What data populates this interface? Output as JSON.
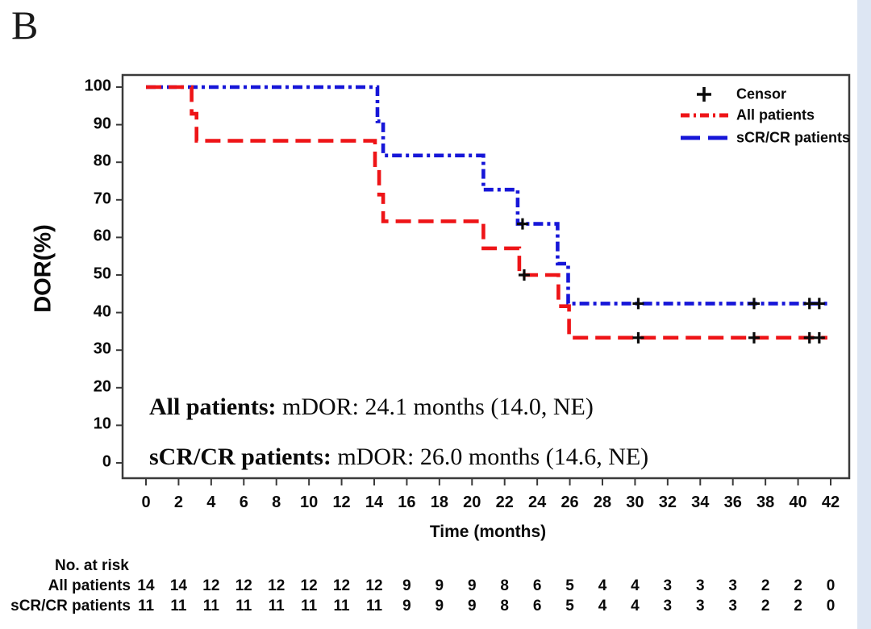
{
  "panel_label": "B",
  "colors": {
    "red_series": "#ee1417",
    "blue_series": "#1616d8",
    "frame": "#3a3a3a",
    "censor": "#0a0a0a",
    "right_strip": "#dde6f3"
  },
  "legend": {
    "censor_symbol": "+",
    "censor_label": "Censor",
    "series1_label": "All patients",
    "series2_label": "sCR/CR patients"
  },
  "annotations": [
    {
      "label": "All patients:",
      "text": " mDOR: 24.1 months (14.0, NE)"
    },
    {
      "label": "sCR/CR patients:",
      "text": " mDOR: 26.0 months (14.6, NE)"
    }
  ],
  "risk_table": {
    "title": "No. at risk",
    "rows": [
      {
        "label": "All patients",
        "values": [
          14,
          14,
          12,
          12,
          12,
          12,
          12,
          12,
          9,
          9,
          9,
          8,
          6,
          5,
          4,
          4,
          3,
          3,
          3,
          2,
          2,
          0
        ]
      },
      {
        "label": "sCR/CR patients",
        "values": [
          11,
          11,
          11,
          11,
          11,
          11,
          11,
          11,
          9,
          9,
          9,
          8,
          6,
          5,
          4,
          4,
          3,
          3,
          3,
          2,
          2,
          0
        ]
      }
    ]
  },
  "chart_data": {
    "type": "line",
    "subtype": "kaplan-meier-step",
    "title": "",
    "xlabel": "Time (months)",
    "ylabel": "DOR(%)",
    "xlim": [
      0,
      42
    ],
    "ylim": [
      0,
      100
    ],
    "grid": false,
    "legend_position": "top-right-inside",
    "x_ticks": [
      0,
      2,
      4,
      6,
      8,
      10,
      12,
      14,
      16,
      18,
      20,
      22,
      24,
      26,
      28,
      30,
      32,
      34,
      36,
      38,
      40,
      42
    ],
    "y_ticks": [
      0,
      10,
      20,
      30,
      40,
      50,
      60,
      70,
      80,
      90,
      100
    ],
    "series": [
      {
        "name": "sCR/CR patients",
        "color_key": "blue_series",
        "dash_array": "12 5 4 5",
        "legend_dash_array": "24 10",
        "median_DOR_months": 26.0,
        "ci": "(14.6, NE)",
        "steps": [
          [
            0,
            100
          ],
          [
            14.2,
            100
          ],
          [
            14.2,
            90.9
          ],
          [
            14.55,
            90.9
          ],
          [
            14.55,
            81.8
          ],
          [
            20.7,
            81.8
          ],
          [
            20.7,
            72.7
          ],
          [
            22.8,
            72.7
          ],
          [
            22.8,
            63.6
          ],
          [
            25.25,
            63.6
          ],
          [
            25.25,
            53.0
          ],
          [
            25.9,
            53.0
          ],
          [
            25.9,
            42.4
          ],
          [
            41.8,
            42.4
          ]
        ],
        "censors": [
          [
            23.1,
            63.6
          ],
          [
            30.2,
            42.4
          ],
          [
            37.3,
            42.4
          ],
          [
            40.7,
            42.4
          ],
          [
            41.3,
            42.4
          ]
        ]
      },
      {
        "name": "All patients",
        "color_key": "red_series",
        "dash_array": "19 9",
        "legend_dash_array": "11 5 3 5",
        "median_DOR_months": 24.1,
        "ci": "(14.0, NE)",
        "steps": [
          [
            0,
            100
          ],
          [
            2.8,
            100
          ],
          [
            2.8,
            92.9
          ],
          [
            3.1,
            92.9
          ],
          [
            3.1,
            85.7
          ],
          [
            14.05,
            85.7
          ],
          [
            14.05,
            78.6
          ],
          [
            14.3,
            78.6
          ],
          [
            14.3,
            71.4
          ],
          [
            14.55,
            71.4
          ],
          [
            14.55,
            64.3
          ],
          [
            20.7,
            64.3
          ],
          [
            20.7,
            57.1
          ],
          [
            22.9,
            57.1
          ],
          [
            22.9,
            50.0
          ],
          [
            25.3,
            50.0
          ],
          [
            25.3,
            41.7
          ],
          [
            25.95,
            41.7
          ],
          [
            25.95,
            33.3
          ],
          [
            41.8,
            33.3
          ]
        ],
        "censors": [
          [
            23.2,
            50.0
          ],
          [
            30.2,
            33.3
          ],
          [
            37.3,
            33.3
          ],
          [
            40.7,
            33.3
          ],
          [
            41.3,
            33.3
          ]
        ]
      }
    ]
  }
}
